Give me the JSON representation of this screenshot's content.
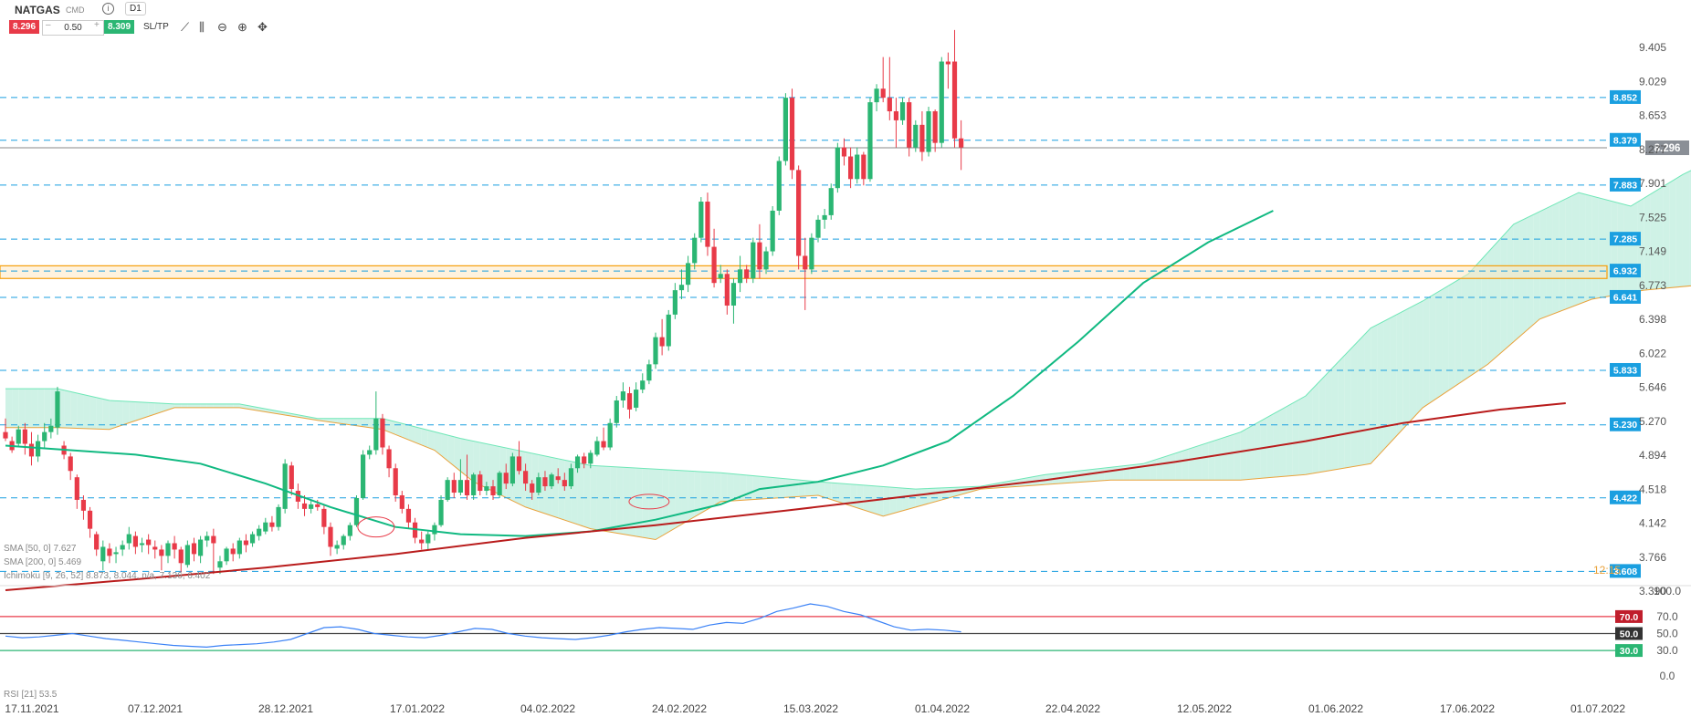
{
  "header": {
    "symbol": "NATGAS",
    "symbol_sub": "CMD",
    "timeframe": "D1",
    "sell_price": "8.296",
    "quantity": "0.50",
    "buy_price": "8.309",
    "sltp_label": "SL/TP"
  },
  "legend": {
    "sma50": "SMA [50, 0] 7.627",
    "sma200": "SMA [200, 0] 5.469",
    "ichimoku": "Ichimoku [9, 26, 52] 8.873, 8.044, n/a, 7.136, 6.402",
    "rsi": "RSI [21] 53.5"
  },
  "colors": {
    "up": "#2bb673",
    "down": "#e83a48",
    "sma50": "#10b981",
    "sma200": "#b91c1c",
    "rsi": "#3b82f6",
    "level": "#1a9fe0",
    "zone": "#f59e0b"
  },
  "chart_data": {
    "type": "candlestick",
    "x_dates": [
      "17.11.2021",
      "07.12.2021",
      "28.12.2021",
      "17.01.2022",
      "04.02.2022",
      "24.02.2022",
      "15.03.2022",
      "01.04.2022",
      "22.04.2022",
      "12.05.2022",
      "01.06.2022",
      "17.06.2022",
      "01.07.2022"
    ],
    "price_ticks": [
      "9.405",
      "9.029",
      "8.653",
      "8.277",
      "7.901",
      "7.525",
      "7.149",
      "6.773",
      "6.398",
      "6.022",
      "5.646",
      "5.270",
      "4.894",
      "4.518",
      "4.142",
      "3.766",
      "3.390"
    ],
    "ylim": [
      3.39,
      9.78
    ],
    "current_price": "8.296",
    "level_labels": [
      "8.852",
      "8.379",
      "7.883",
      "7.285",
      "6.932",
      "6.641",
      "5.833",
      "5.230",
      "4.422",
      "3.608"
    ],
    "zone": [
      6.85,
      6.99
    ],
    "bottom_label": "12:15",
    "rsi_ticks": [
      "100.0",
      "70.0",
      "50.0",
      "30.0",
      "0.0"
    ],
    "rsi_levels": [
      "70.0",
      "50.0",
      "30.0"
    ],
    "candles": [
      [
        5.15,
        5.3,
        5.08,
        5.05
      ],
      [
        5.05,
        5.1,
        4.95,
        4.92
      ],
      [
        5.02,
        5.22,
        5.18,
        4.98
      ],
      [
        5.18,
        5.25,
        5.02,
        4.9
      ],
      [
        5.02,
        5.15,
        4.88,
        4.78
      ],
      [
        4.88,
        5.12,
        5.05,
        4.82
      ],
      [
        5.05,
        5.25,
        5.15,
        4.98
      ],
      [
        5.15,
        5.3,
        5.22,
        5.08
      ],
      [
        5.2,
        5.65,
        5.6,
        5.12
      ],
      [
        5.0,
        5.05,
        4.9,
        4.85
      ],
      [
        4.88,
        4.92,
        4.72,
        4.62
      ],
      [
        4.65,
        4.68,
        4.4,
        4.3
      ],
      [
        4.4,
        4.45,
        4.28,
        4.18
      ],
      [
        4.28,
        4.32,
        4.08,
        3.98
      ],
      [
        4.02,
        4.05,
        3.85,
        3.78
      ],
      [
        3.72,
        3.95,
        3.88,
        3.62
      ],
      [
        3.86,
        3.92,
        3.78,
        3.7
      ],
      [
        3.8,
        3.88,
        3.82,
        3.7
      ],
      [
        3.85,
        3.95,
        3.9,
        3.78
      ],
      [
        3.92,
        4.1,
        4.02,
        3.85
      ],
      [
        4.0,
        4.05,
        3.88,
        3.8
      ],
      [
        3.9,
        3.98,
        3.92,
        3.82
      ],
      [
        3.96,
        4.02,
        3.9,
        3.8
      ],
      [
        3.88,
        3.95,
        3.85,
        3.75
      ],
      [
        3.85,
        3.9,
        3.78,
        3.62
      ],
      [
        3.78,
        3.95,
        3.92,
        3.7
      ],
      [
        3.92,
        4.0,
        3.85,
        3.75
      ],
      [
        3.85,
        3.88,
        3.7,
        3.6
      ],
      [
        3.68,
        3.95,
        3.9,
        3.65
      ],
      [
        3.92,
        3.98,
        3.8,
        3.72
      ],
      [
        3.78,
        4.0,
        3.96,
        3.7
      ],
      [
        3.95,
        4.05,
        4.0,
        3.88
      ],
      [
        4.0,
        4.08,
        3.92,
        3.58
      ],
      [
        3.65,
        3.78,
        3.72,
        3.58
      ],
      [
        3.72,
        3.88,
        3.86,
        3.68
      ],
      [
        3.86,
        3.92,
        3.8,
        3.72
      ],
      [
        3.8,
        3.98,
        3.95,
        3.75
      ],
      [
        3.95,
        4.02,
        3.9,
        3.82
      ],
      [
        3.92,
        4.05,
        4.02,
        3.88
      ],
      [
        4.0,
        4.12,
        4.08,
        3.95
      ],
      [
        4.05,
        4.2,
        4.15,
        4.02
      ],
      [
        4.15,
        4.22,
        4.1,
        4.05
      ],
      [
        4.1,
        4.35,
        4.32,
        4.06
      ],
      [
        4.3,
        4.85,
        4.8,
        4.25
      ],
      [
        4.78,
        4.82,
        4.52,
        4.45
      ],
      [
        4.5,
        4.58,
        4.38,
        4.3
      ],
      [
        4.36,
        4.45,
        4.3,
        4.22
      ],
      [
        4.3,
        4.4,
        4.35,
        4.25
      ],
      [
        4.35,
        4.4,
        4.32,
        4.28
      ],
      [
        4.3,
        4.34,
        4.1,
        4.02
      ],
      [
        4.1,
        4.15,
        3.88,
        3.78
      ],
      [
        3.86,
        3.95,
        3.9,
        3.8
      ],
      [
        3.9,
        4.02,
        4.0,
        3.85
      ],
      [
        4.0,
        4.15,
        4.12,
        3.95
      ],
      [
        4.12,
        4.45,
        4.42,
        4.1
      ],
      [
        4.42,
        4.95,
        4.9,
        4.4
      ],
      [
        4.9,
        5.0,
        4.95,
        4.85
      ],
      [
        4.95,
        5.6,
        5.3,
        4.9
      ],
      [
        5.3,
        5.35,
        4.98,
        4.9
      ],
      [
        4.96,
        5.0,
        4.75,
        4.65
      ],
      [
        4.75,
        4.8,
        4.45,
        4.38
      ],
      [
        4.45,
        4.5,
        4.3,
        4.25
      ],
      [
        4.3,
        4.35,
        4.15,
        4.08
      ],
      [
        4.15,
        4.2,
        3.98,
        3.92
      ],
      [
        3.96,
        4.05,
        3.92,
        3.85
      ],
      [
        3.92,
        4.05,
        4.02,
        3.85
      ],
      [
        4.02,
        4.15,
        4.12,
        3.95
      ],
      [
        4.12,
        4.45,
        4.4,
        4.1
      ],
      [
        4.4,
        4.65,
        4.62,
        4.38
      ],
      [
        4.62,
        4.7,
        4.48,
        4.42
      ],
      [
        4.48,
        4.85,
        4.62,
        4.45
      ],
      [
        4.62,
        4.9,
        4.45,
        4.4
      ],
      [
        4.45,
        4.7,
        4.68,
        4.4
      ],
      [
        4.68,
        4.72,
        4.5,
        4.45
      ],
      [
        4.5,
        4.6,
        4.55,
        4.45
      ],
      [
        4.55,
        4.62,
        4.45,
        4.4
      ],
      [
        4.45,
        4.72,
        4.7,
        4.42
      ],
      [
        4.7,
        4.8,
        4.58,
        4.52
      ],
      [
        4.58,
        4.92,
        4.88,
        4.55
      ],
      [
        4.88,
        5.05,
        4.72,
        4.68
      ],
      [
        4.72,
        4.8,
        4.58,
        4.5
      ],
      [
        4.58,
        4.62,
        4.48,
        4.4
      ],
      [
        4.48,
        4.7,
        4.65,
        4.45
      ],
      [
        4.65,
        4.72,
        4.55,
        4.5
      ],
      [
        4.55,
        4.7,
        4.68,
        4.52
      ],
      [
        4.66,
        4.75,
        4.62,
        4.58
      ],
      [
        4.62,
        4.7,
        4.55,
        4.5
      ],
      [
        4.55,
        4.8,
        4.75,
        4.52
      ],
      [
        4.75,
        4.9,
        4.88,
        4.7
      ],
      [
        4.88,
        4.92,
        4.8,
        4.75
      ],
      [
        4.8,
        4.95,
        4.92,
        4.75
      ],
      [
        4.9,
        5.1,
        5.05,
        4.88
      ],
      [
        5.05,
        5.2,
        4.98,
        4.95
      ],
      [
        4.98,
        5.3,
        5.25,
        4.95
      ],
      [
        5.25,
        5.55,
        5.5,
        5.2
      ],
      [
        5.5,
        5.7,
        5.6,
        5.42
      ],
      [
        5.58,
        5.65,
        5.4,
        5.3
      ],
      [
        5.42,
        5.7,
        5.62,
        5.38
      ],
      [
        5.62,
        5.8,
        5.72,
        5.58
      ],
      [
        5.72,
        5.95,
        5.9,
        5.68
      ],
      [
        5.9,
        6.25,
        6.2,
        5.85
      ],
      [
        6.2,
        6.4,
        6.1,
        6.0
      ],
      [
        6.1,
        6.5,
        6.45,
        6.05
      ],
      [
        6.45,
        6.8,
        6.72,
        6.4
      ],
      [
        6.72,
        6.95,
        6.78,
        6.62
      ],
      [
        6.78,
        7.1,
        7.02,
        6.7
      ],
      [
        7.02,
        7.35,
        7.3,
        6.95
      ],
      [
        7.3,
        7.75,
        7.7,
        7.25
      ],
      [
        7.7,
        7.8,
        7.2,
        7.1
      ],
      [
        7.2,
        7.4,
        6.8,
        6.75
      ],
      [
        6.85,
        7.0,
        6.9,
        6.8
      ],
      [
        6.9,
        6.95,
        6.55,
        6.45
      ],
      [
        6.55,
        6.85,
        6.8,
        6.35
      ],
      [
        6.8,
        7.1,
        6.95,
        6.7
      ],
      [
        6.95,
        7.0,
        6.85,
        6.8
      ],
      [
        6.85,
        7.3,
        7.25,
        6.8
      ],
      [
        7.25,
        7.45,
        6.95,
        6.85
      ],
      [
        6.95,
        7.2,
        7.15,
        6.9
      ],
      [
        7.15,
        7.65,
        7.6,
        7.1
      ],
      [
        7.6,
        8.2,
        8.15,
        7.55
      ],
      [
        8.15,
        8.9,
        8.85,
        8.1
      ],
      [
        8.85,
        8.95,
        8.05,
        7.95
      ],
      [
        8.05,
        8.1,
        7.1,
        6.95
      ],
      [
        7.1,
        7.3,
        6.95,
        6.5
      ],
      [
        6.95,
        7.35,
        7.3,
        6.9
      ],
      [
        7.3,
        7.55,
        7.5,
        7.25
      ],
      [
        7.5,
        7.62,
        7.55,
        7.4
      ],
      [
        7.55,
        7.9,
        7.85,
        7.5
      ],
      [
        7.85,
        8.35,
        8.3,
        7.8
      ],
      [
        8.3,
        8.4,
        8.2,
        8.1
      ],
      [
        8.2,
        8.3,
        7.95,
        7.85
      ],
      [
        7.95,
        8.3,
        8.22,
        7.9
      ],
      [
        8.22,
        8.25,
        7.95,
        7.88
      ],
      [
        7.95,
        8.85,
        8.8,
        7.92
      ],
      [
        8.8,
        9.0,
        8.95,
        8.7
      ],
      [
        8.95,
        9.3,
        8.85,
        8.8
      ],
      [
        8.85,
        9.3,
        8.7,
        8.6
      ],
      [
        8.7,
        8.85,
        8.6,
        8.3
      ],
      [
        8.6,
        8.85,
        8.8,
        8.55
      ],
      [
        8.8,
        8.85,
        8.3,
        8.2
      ],
      [
        8.3,
        8.6,
        8.55,
        8.25
      ],
      [
        8.55,
        8.7,
        8.25,
        8.15
      ],
      [
        8.25,
        8.75,
        8.7,
        8.2
      ],
      [
        8.7,
        8.72,
        8.35,
        8.25
      ],
      [
        8.35,
        9.3,
        9.25,
        8.3
      ],
      [
        9.25,
        9.35,
        9.22,
        8.95
      ],
      [
        9.25,
        9.6,
        8.4,
        8.3
      ],
      [
        8.4,
        8.6,
        8.3,
        8.05
      ]
    ],
    "sma50": [
      [
        0,
        5.0
      ],
      [
        10,
        4.95
      ],
      [
        20,
        4.9
      ],
      [
        30,
        4.8
      ],
      [
        40,
        4.58
      ],
      [
        50,
        4.32
      ],
      [
        60,
        4.1
      ],
      [
        70,
        4.02
      ],
      [
        80,
        4.0
      ],
      [
        90,
        4.05
      ],
      [
        100,
        4.18
      ],
      [
        110,
        4.35
      ],
      [
        116,
        4.52
      ],
      [
        125,
        4.6
      ],
      [
        135,
        4.78
      ],
      [
        145,
        5.05
      ],
      [
        155,
        5.55
      ],
      [
        165,
        6.15
      ],
      [
        175,
        6.8
      ],
      [
        185,
        7.25
      ],
      [
        195,
        7.6
      ]
    ],
    "sma200": [
      [
        0,
        3.4
      ],
      [
        20,
        3.52
      ],
      [
        40,
        3.65
      ],
      [
        60,
        3.8
      ],
      [
        80,
        3.98
      ],
      [
        100,
        4.12
      ],
      [
        120,
        4.28
      ],
      [
        140,
        4.45
      ],
      [
        160,
        4.62
      ],
      [
        180,
        4.82
      ],
      [
        200,
        5.05
      ],
      [
        215,
        5.25
      ],
      [
        230,
        5.4
      ],
      [
        240,
        5.47
      ]
    ],
    "rsi": [
      47,
      45,
      46,
      48,
      50,
      47,
      44,
      42,
      40,
      38,
      36,
      35,
      34,
      36,
      37,
      38,
      40,
      43,
      50,
      57,
      58,
      55,
      50,
      48,
      46,
      45,
      48,
      52,
      56,
      55,
      50,
      47,
      45,
      44,
      43,
      45,
      48,
      52,
      55,
      57,
      56,
      55,
      60,
      63,
      62,
      68,
      76,
      80,
      85,
      82,
      76,
      72,
      65,
      58,
      54,
      55,
      54,
      52
    ],
    "cloud_a": [
      [
        0,
        5.63
      ],
      [
        8,
        5.63
      ],
      [
        16,
        5.5
      ],
      [
        26,
        5.46
      ],
      [
        36,
        5.46
      ],
      [
        48,
        5.3
      ],
      [
        58,
        5.3
      ],
      [
        70,
        5.08
      ],
      [
        90,
        4.78
      ],
      [
        110,
        4.7
      ],
      [
        125,
        4.6
      ],
      [
        140,
        4.52
      ],
      [
        150,
        4.55
      ],
      [
        160,
        4.68
      ],
      [
        175,
        4.8
      ],
      [
        190,
        5.15
      ],
      [
        200,
        5.55
      ],
      [
        210,
        6.3
      ],
      [
        218,
        6.6
      ],
      [
        225,
        6.9
      ],
      [
        232,
        7.45
      ],
      [
        242,
        7.8
      ],
      [
        250,
        7.65
      ],
      [
        258,
        8.0
      ],
      [
        268,
        8.35
      ],
      [
        278,
        8.45
      ],
      [
        285,
        8.42
      ]
    ],
    "cloud_b": [
      [
        0,
        5.2
      ],
      [
        8,
        5.2
      ],
      [
        16,
        5.18
      ],
      [
        26,
        5.42
      ],
      [
        36,
        5.42
      ],
      [
        48,
        5.28
      ],
      [
        58,
        5.18
      ],
      [
        66,
        4.95
      ],
      [
        72,
        4.6
      ],
      [
        80,
        4.32
      ],
      [
        90,
        4.08
      ],
      [
        100,
        3.96
      ],
      [
        110,
        4.38
      ],
      [
        125,
        4.45
      ],
      [
        135,
        4.22
      ],
      [
        150,
        4.52
      ],
      [
        170,
        4.62
      ],
      [
        190,
        4.62
      ],
      [
        200,
        4.68
      ],
      [
        210,
        4.8
      ],
      [
        218,
        5.42
      ],
      [
        228,
        5.9
      ],
      [
        236,
        6.4
      ],
      [
        244,
        6.62
      ],
      [
        252,
        6.72
      ],
      [
        264,
        6.8
      ],
      [
        272,
        7.3
      ],
      [
        285,
        7.48
      ]
    ]
  }
}
